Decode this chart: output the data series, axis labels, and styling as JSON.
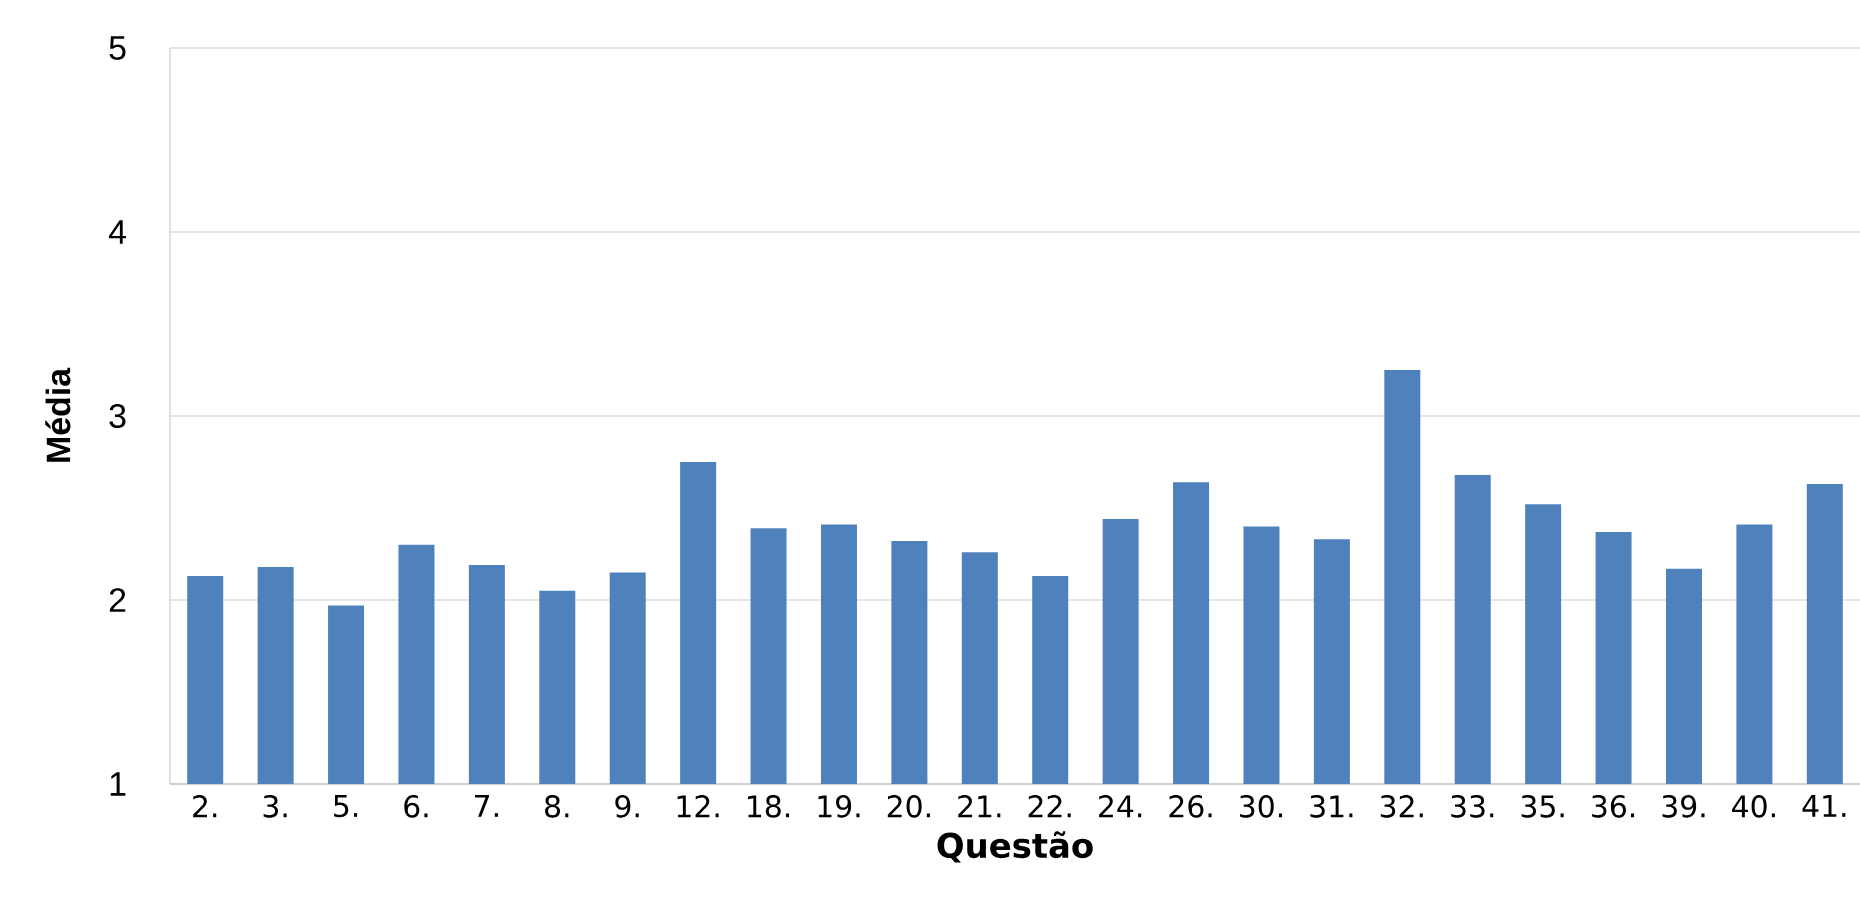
{
  "chart_data": {
    "type": "bar",
    "xlabel": "Questão",
    "ylabel": "Média",
    "categories": [
      "2.",
      "3.",
      "5.",
      "6.",
      "7.",
      "8.",
      "9.",
      "12.",
      "18.",
      "19.",
      "20.",
      "21.",
      "22.",
      "24.",
      "26.",
      "30.",
      "31.",
      "32.",
      "33.",
      "35.",
      "36.",
      "39.",
      "40.",
      "41."
    ],
    "values": [
      2.13,
      2.18,
      1.97,
      2.3,
      2.19,
      2.05,
      2.15,
      2.75,
      2.39,
      2.41,
      2.32,
      2.26,
      2.13,
      2.44,
      2.64,
      2.4,
      2.33,
      3.25,
      2.68,
      2.52,
      2.37,
      2.17,
      2.41,
      2.63
    ],
    "color": "#4f81bd",
    "ylim": [
      1,
      5
    ],
    "yticks": [
      1,
      2,
      3,
      4,
      5
    ],
    "grid": "y"
  }
}
